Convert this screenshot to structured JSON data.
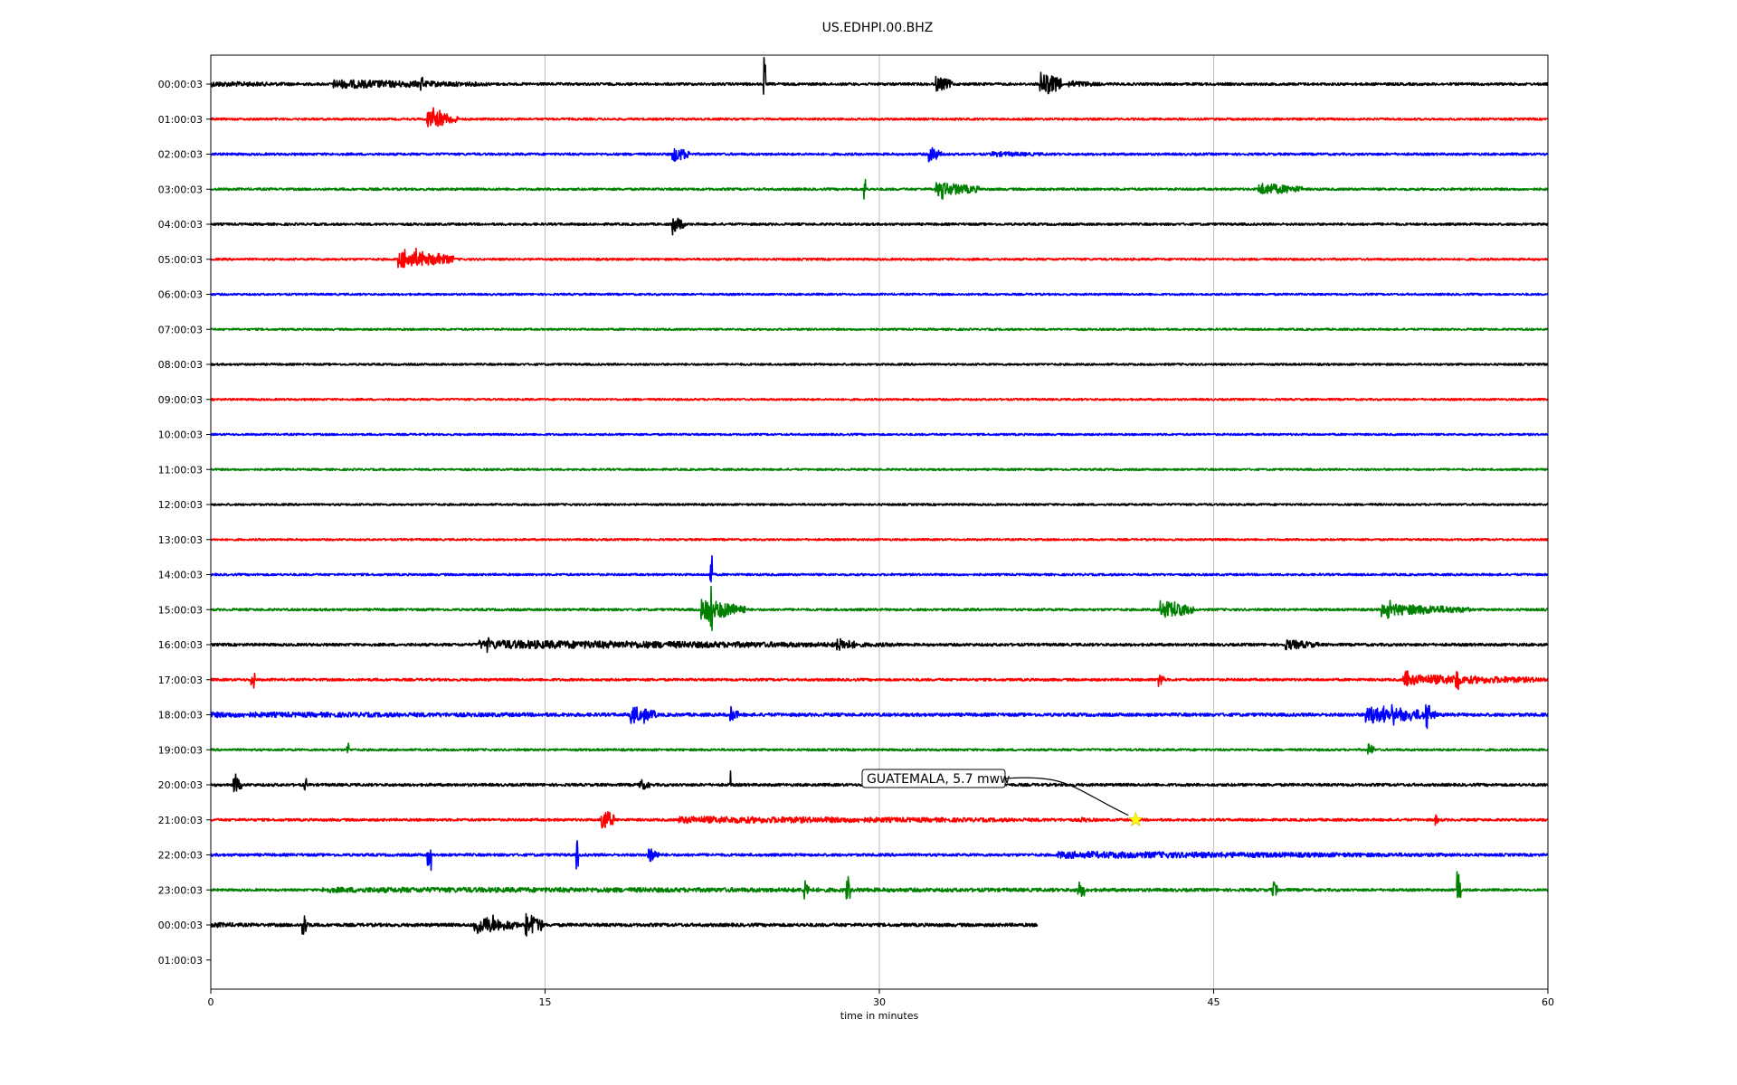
{
  "chart_data": {
    "type": "line",
    "title": "US.EDHPI.00.BHZ",
    "xlabel": "time in minutes",
    "ylabel": "",
    "xlim": [
      0,
      60
    ],
    "xticks": [
      0,
      15,
      30,
      45,
      60
    ],
    "xtick_labels": [
      "0",
      "15",
      "30",
      "45",
      "60"
    ],
    "grid": "vertical",
    "row_labels": [
      "00:00:03",
      "01:00:03",
      "02:00:03",
      "03:00:03",
      "04:00:03",
      "05:00:03",
      "06:00:03",
      "07:00:03",
      "08:00:03",
      "09:00:03",
      "10:00:03",
      "11:00:03",
      "12:00:03",
      "13:00:03",
      "14:00:03",
      "15:00:03",
      "16:00:03",
      "17:00:03",
      "18:00:03",
      "19:00:03",
      "20:00:03",
      "21:00:03",
      "22:00:03",
      "23:00:03",
      "00:00:03",
      "01:00:03"
    ],
    "trace_colors": [
      "#000000",
      "#ff0000",
      "#0000ff",
      "#008000"
    ],
    "traces": [
      {
        "row": 0,
        "start": 0,
        "end": 60,
        "noise": 1.4,
        "bursts": [
          [
            0,
            5,
            3
          ],
          [
            5.5,
            7,
            5
          ],
          [
            9.3,
            0.2,
            8
          ],
          [
            24.8,
            0.1,
            20
          ],
          [
            32.5,
            0.8,
            9
          ],
          [
            37.2,
            1,
            14
          ],
          [
            38.5,
            1.5,
            4
          ]
        ]
      },
      {
        "row": 1,
        "start": 0,
        "end": 60,
        "noise": 1.2,
        "bursts": [
          [
            9.7,
            1.4,
            10
          ],
          [
            10.2,
            0.1,
            16
          ]
        ]
      },
      {
        "row": 2,
        "start": 0,
        "end": 60,
        "noise": 1.3,
        "bursts": [
          [
            20.7,
            0.8,
            9
          ],
          [
            32.2,
            0.6,
            9
          ],
          [
            35,
            3,
            3
          ]
        ]
      },
      {
        "row": 3,
        "start": 0,
        "end": 60,
        "noise": 1.3,
        "bursts": [
          [
            29.3,
            0.1,
            14
          ],
          [
            32.5,
            2,
            8
          ],
          [
            47,
            2,
            7
          ]
        ]
      },
      {
        "row": 4,
        "start": 0,
        "end": 60,
        "noise": 1.3,
        "bursts": [
          [
            20.7,
            0.6,
            9
          ]
        ]
      },
      {
        "row": 5,
        "start": 0,
        "end": 60,
        "noise": 1.2,
        "bursts": [
          [
            8.4,
            2.5,
            10
          ],
          [
            10.2,
            0.1,
            16
          ]
        ]
      },
      {
        "row": 6,
        "start": 0,
        "end": 60,
        "noise": 1.1,
        "bursts": []
      },
      {
        "row": 7,
        "start": 0,
        "end": 60,
        "noise": 1.1,
        "bursts": []
      },
      {
        "row": 8,
        "start": 0,
        "end": 60,
        "noise": 1.1,
        "bursts": []
      },
      {
        "row": 9,
        "start": 0,
        "end": 60,
        "noise": 1.1,
        "bursts": []
      },
      {
        "row": 10,
        "start": 0,
        "end": 60,
        "noise": 1.1,
        "bursts": []
      },
      {
        "row": 11,
        "start": 0,
        "end": 60,
        "noise": 1.1,
        "bursts": []
      },
      {
        "row": 12,
        "start": 0,
        "end": 60,
        "noise": 1.1,
        "bursts": []
      },
      {
        "row": 13,
        "start": 0,
        "end": 60,
        "noise": 1.1,
        "bursts": []
      },
      {
        "row": 14,
        "start": 0,
        "end": 60,
        "noise": 1.2,
        "bursts": [
          [
            22.4,
            0.1,
            22
          ]
        ]
      },
      {
        "row": 15,
        "start": 0,
        "end": 60,
        "noise": 1.3,
        "bursts": [
          [
            22,
            2,
            12
          ],
          [
            22.4,
            0.1,
            28
          ],
          [
            42.6,
            1.5,
            10
          ],
          [
            52.5,
            4,
            7
          ]
        ]
      },
      {
        "row": 16,
        "start": 0,
        "end": 60,
        "noise": 1.5,
        "bursts": [
          [
            12,
            19,
            5
          ],
          [
            12.4,
            0.1,
            10
          ],
          [
            28,
            1,
            8
          ],
          [
            48.2,
            1.5,
            6
          ]
        ]
      },
      {
        "row": 17,
        "start": 0,
        "end": 60,
        "noise": 1.4,
        "bursts": [
          [
            1.8,
            0.2,
            10
          ],
          [
            42.5,
            0.3,
            8
          ],
          [
            53.5,
            6.5,
            6
          ],
          [
            53.6,
            0.2,
            12
          ],
          [
            55.8,
            0.2,
            13
          ]
        ]
      },
      {
        "row": 18,
        "start": 0,
        "end": 60,
        "noise": 1.8,
        "bursts": [
          [
            0,
            28,
            3
          ],
          [
            18.8,
            1.2,
            10
          ],
          [
            23.3,
            0.4,
            8
          ],
          [
            51.8,
            3.2,
            10
          ],
          [
            54.5,
            0.2,
            16
          ]
        ]
      },
      {
        "row": 19,
        "start": 0,
        "end": 60,
        "noise": 1.2,
        "bursts": [
          [
            6.1,
            0.1,
            10
          ],
          [
            51.9,
            0.3,
            11
          ]
        ]
      },
      {
        "row": 20,
        "start": 0,
        "end": 60,
        "noise": 1.5,
        "bursts": [
          [
            1,
            0.4,
            10
          ],
          [
            4.2,
            0.1,
            8
          ],
          [
            19.2,
            0.5,
            7
          ],
          [
            23.3,
            0.1,
            10
          ]
        ]
      },
      {
        "row": 21,
        "start": 0,
        "end": 60,
        "noise": 1.4,
        "bursts": [
          [
            17.5,
            0.6,
            14
          ],
          [
            21,
            18,
            4
          ],
          [
            39,
            1,
            3
          ],
          [
            54.9,
            0.2,
            6
          ]
        ]
      },
      {
        "row": 22,
        "start": 0,
        "end": 60,
        "noise": 1.5,
        "bursts": [
          [
            9.7,
            0.2,
            12
          ],
          [
            16.4,
            0.1,
            16
          ],
          [
            19.6,
            0.5,
            9
          ],
          [
            38,
            19,
            4
          ]
        ]
      },
      {
        "row": 23,
        "start": 0,
        "end": 60,
        "noise": 1.3,
        "bursts": [
          [
            5,
            55,
            3
          ],
          [
            26.6,
            0.3,
            12
          ],
          [
            28.5,
            0.2,
            10
          ],
          [
            38.9,
            0.4,
            12
          ],
          [
            47.6,
            0.3,
            12
          ],
          [
            55.9,
            0.2,
            22
          ]
        ]
      },
      {
        "row": 24,
        "start": 0,
        "end": 37.1,
        "noise": 1.8,
        "bursts": [
          [
            0,
            2.5,
            3
          ],
          [
            4.1,
            0.3,
            14
          ],
          [
            11.8,
            2,
            10
          ],
          [
            14.1,
            0.8,
            14
          ]
        ]
      }
    ],
    "annotations": [
      {
        "text": "GUATEMALA, 5.7 mww",
        "row": 21,
        "x": 41.5,
        "marker": "star",
        "marker_color": "#ffff00"
      }
    ]
  }
}
